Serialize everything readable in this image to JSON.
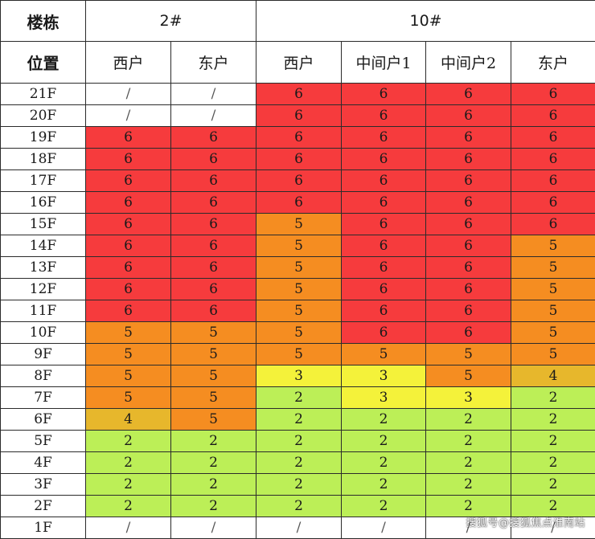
{
  "header": {
    "row_label_building": "楼栋",
    "row_label_position": "位置",
    "buildings": [
      {
        "name": "2#",
        "units": [
          "西户",
          "东户"
        ]
      },
      {
        "name": "10#",
        "units": [
          "西户",
          "中间户1",
          "中间户2",
          "东户"
        ]
      }
    ]
  },
  "rows": [
    {
      "floor": "21F",
      "values": [
        "/",
        "/",
        "6",
        "6",
        "6",
        "6"
      ]
    },
    {
      "floor": "20F",
      "values": [
        "/",
        "/",
        "6",
        "6",
        "6",
        "6"
      ]
    },
    {
      "floor": "19F",
      "values": [
        "6",
        "6",
        "6",
        "6",
        "6",
        "6"
      ]
    },
    {
      "floor": "18F",
      "values": [
        "6",
        "6",
        "6",
        "6",
        "6",
        "6"
      ]
    },
    {
      "floor": "17F",
      "values": [
        "6",
        "6",
        "6",
        "6",
        "6",
        "6"
      ]
    },
    {
      "floor": "16F",
      "values": [
        "6",
        "6",
        "6",
        "6",
        "6",
        "6"
      ]
    },
    {
      "floor": "15F",
      "values": [
        "6",
        "6",
        "5",
        "6",
        "6",
        "6"
      ]
    },
    {
      "floor": "14F",
      "values": [
        "6",
        "6",
        "5",
        "6",
        "6",
        "5"
      ]
    },
    {
      "floor": "13F",
      "values": [
        "6",
        "6",
        "5",
        "6",
        "6",
        "5"
      ]
    },
    {
      "floor": "12F",
      "values": [
        "6",
        "6",
        "5",
        "6",
        "6",
        "5"
      ]
    },
    {
      "floor": "11F",
      "values": [
        "6",
        "6",
        "5",
        "6",
        "6",
        "5"
      ]
    },
    {
      "floor": "10F",
      "values": [
        "5",
        "5",
        "5",
        "6",
        "6",
        "5"
      ]
    },
    {
      "floor": "9F",
      "values": [
        "5",
        "5",
        "5",
        "5",
        "5",
        "5"
      ]
    },
    {
      "floor": "8F",
      "values": [
        "5",
        "5",
        "3",
        "3",
        "5",
        "4"
      ]
    },
    {
      "floor": "7F",
      "values": [
        "5",
        "5",
        "2",
        "3",
        "3",
        "2"
      ]
    },
    {
      "floor": "6F",
      "values": [
        "4",
        "5",
        "2",
        "2",
        "2",
        "2"
      ]
    },
    {
      "floor": "5F",
      "values": [
        "2",
        "2",
        "2",
        "2",
        "2",
        "2"
      ]
    },
    {
      "floor": "4F",
      "values": [
        "2",
        "2",
        "2",
        "2",
        "2",
        "2"
      ]
    },
    {
      "floor": "3F",
      "values": [
        "2",
        "2",
        "2",
        "2",
        "2",
        "2"
      ]
    },
    {
      "floor": "2F",
      "values": [
        "2",
        "2",
        "2",
        "2",
        "2",
        "2"
      ]
    },
    {
      "floor": "1F",
      "values": [
        "/",
        "/",
        "/",
        "/",
        "/",
        "/"
      ]
    }
  ],
  "colors": {
    "6": "#f63b3d",
    "5": "#f58d21",
    "4": "#e7b72c",
    "3": "#f4f23a",
    "2": "#bcef57",
    "/": "#ffffff"
  },
  "watermark": "搜狐号@搜狐焦点淮南站"
}
